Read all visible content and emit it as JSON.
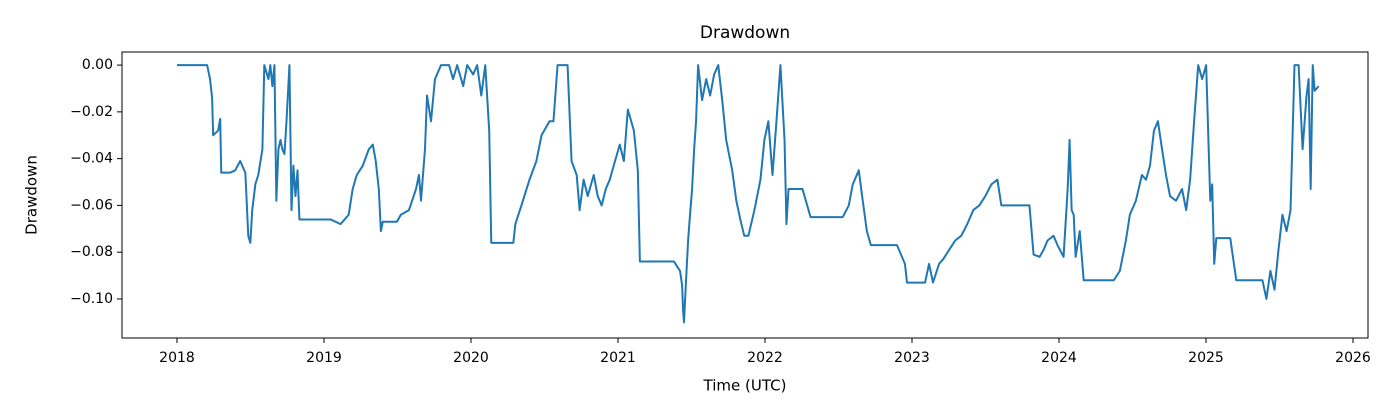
{
  "chart_data": {
    "type": "line",
    "title": "Drawdown",
    "xlabel": "Time (UTC)",
    "ylabel": "Drawdown",
    "color": "#1f77b4",
    "grid": false,
    "x": [
      2018.0,
      2018.205,
      2018.225,
      2018.239,
      2018.246,
      2018.28,
      2018.294,
      2018.301,
      2018.362,
      2018.396,
      2018.43,
      2018.465,
      2018.485,
      2018.499,
      2018.512,
      2018.533,
      2018.553,
      2018.581,
      2018.594,
      2018.622,
      2018.635,
      2018.649,
      2018.663,
      2018.676,
      2018.69,
      2018.704,
      2018.717,
      2018.731,
      2018.745,
      2018.765,
      2018.779,
      2018.792,
      2018.806,
      2018.82,
      2018.833,
      2019.045,
      2019.113,
      2019.168,
      2019.195,
      2019.223,
      2019.264,
      2019.305,
      2019.332,
      2019.352,
      2019.373,
      2019.387,
      2019.4,
      2019.496,
      2019.523,
      2019.578,
      2019.626,
      2019.646,
      2019.66,
      2019.687,
      2019.701,
      2019.728,
      2019.755,
      2019.796,
      2019.851,
      2019.878,
      2019.906,
      2019.947,
      2019.974,
      2020.015,
      2020.042,
      2020.07,
      2020.097,
      2020.124,
      2020.138,
      2020.288,
      2020.302,
      2020.343,
      2020.398,
      2020.445,
      2020.48,
      2020.534,
      2020.561,
      2020.589,
      2020.657,
      2020.684,
      2020.719,
      2020.739,
      2020.766,
      2020.794,
      2020.835,
      2020.862,
      2020.889,
      2020.917,
      2020.944,
      2020.971,
      2021.012,
      2021.04,
      2021.067,
      2021.108,
      2021.135,
      2021.149,
      2021.381,
      2021.422,
      2021.436,
      2021.443,
      2021.449,
      2021.463,
      2021.477,
      2021.49,
      2021.504,
      2021.518,
      2021.531,
      2021.545,
      2021.572,
      2021.6,
      2021.627,
      2021.654,
      2021.682,
      2021.709,
      2021.736,
      2021.777,
      2021.805,
      2021.832,
      2021.859,
      2021.887,
      2021.928,
      2021.969,
      2021.996,
      2022.023,
      2022.051,
      2022.078,
      2022.105,
      2022.133,
      2022.146,
      2022.16,
      2022.255,
      2022.31,
      2022.529,
      2022.57,
      2022.597,
      2022.638,
      2022.665,
      2022.693,
      2022.72,
      2022.898,
      2022.925,
      2022.952,
      2022.966,
      2023.089,
      2023.116,
      2023.143,
      2023.184,
      2023.212,
      2023.253,
      2023.294,
      2023.335,
      2023.376,
      2023.417,
      2023.458,
      2023.499,
      2023.54,
      2023.581,
      2023.608,
      2023.799,
      2023.827,
      2023.868,
      2023.895,
      2023.922,
      2023.963,
      2023.99,
      2024.031,
      2024.059,
      2024.072,
      2024.086,
      2024.1,
      2024.113,
      2024.141,
      2024.168,
      2024.373,
      2024.414,
      2024.455,
      2024.482,
      2024.523,
      2024.564,
      2024.592,
      2024.619,
      2024.646,
      2024.673,
      2024.701,
      2024.728,
      2024.755,
      2024.796,
      2024.837,
      2024.865,
      2024.892,
      2024.919,
      2024.947,
      2024.974,
      2025.001,
      2025.029,
      2025.042,
      2025.056,
      2025.07,
      2025.165,
      2025.206,
      2025.384,
      2025.411,
      2025.438,
      2025.466,
      2025.493,
      2025.52,
      2025.548,
      2025.575,
      2025.602,
      2025.63,
      2025.657,
      2025.684,
      2025.698,
      2025.712,
      2025.726,
      2025.739,
      2025.767
    ],
    "values": [
      0,
      0,
      -0.006,
      -0.014,
      -0.03,
      -0.028,
      -0.023,
      -0.046,
      -0.046,
      -0.045,
      -0.041,
      -0.046,
      -0.073,
      -0.076,
      -0.062,
      -0.051,
      -0.047,
      -0.036,
      0,
      -0.006,
      0,
      -0.009,
      0,
      -0.058,
      -0.036,
      -0.032,
      -0.036,
      -0.038,
      -0.024,
      0,
      -0.062,
      -0.043,
      -0.056,
      -0.045,
      -0.066,
      -0.066,
      -0.068,
      -0.064,
      -0.053,
      -0.047,
      -0.043,
      -0.036,
      -0.034,
      -0.041,
      -0.053,
      -0.071,
      -0.067,
      -0.067,
      -0.064,
      -0.062,
      -0.053,
      -0.047,
      -0.058,
      -0.036,
      -0.013,
      -0.024,
      -0.006,
      0,
      0,
      -0.006,
      0,
      -0.009,
      0,
      -0.004,
      0,
      -0.013,
      0,
      -0.028,
      -0.076,
      -0.076,
      -0.068,
      -0.06,
      -0.049,
      -0.041,
      -0.03,
      -0.024,
      -0.024,
      0,
      0,
      -0.041,
      -0.047,
      -0.062,
      -0.049,
      -0.056,
      -0.047,
      -0.056,
      -0.06,
      -0.053,
      -0.049,
      -0.043,
      -0.034,
      -0.041,
      -0.019,
      -0.028,
      -0.045,
      -0.084,
      -0.084,
      -0.088,
      -0.094,
      -0.105,
      -0.11,
      -0.092,
      -0.075,
      -0.064,
      -0.053,
      -0.036,
      -0.024,
      0,
      -0.015,
      -0.006,
      -0.013,
      -0.004,
      0,
      -0.015,
      -0.032,
      -0.045,
      -0.058,
      -0.066,
      -0.073,
      -0.073,
      -0.062,
      -0.049,
      -0.032,
      -0.024,
      -0.047,
      -0.024,
      0,
      -0.032,
      -0.068,
      -0.053,
      -0.053,
      -0.065,
      -0.065,
      -0.06,
      -0.051,
      -0.045,
      -0.058,
      -0.071,
      -0.077,
      -0.077,
      -0.081,
      -0.085,
      -0.093,
      -0.093,
      -0.085,
      -0.093,
      -0.085,
      -0.083,
      -0.079,
      -0.075,
      -0.073,
      -0.068,
      -0.062,
      -0.06,
      -0.056,
      -0.051,
      -0.049,
      -0.06,
      -0.06,
      -0.081,
      -0.082,
      -0.079,
      -0.075,
      -0.073,
      -0.077,
      -0.082,
      -0.053,
      -0.032,
      -0.062,
      -0.064,
      -0.082,
      -0.071,
      -0.092,
      -0.092,
      -0.088,
      -0.075,
      -0.064,
      -0.058,
      -0.047,
      -0.049,
      -0.043,
      -0.028,
      -0.024,
      -0.036,
      -0.047,
      -0.056,
      -0.058,
      -0.053,
      -0.062,
      -0.049,
      -0.024,
      0,
      -0.006,
      0,
      -0.058,
      -0.051,
      -0.085,
      -0.074,
      -0.074,
      -0.092,
      -0.092,
      -0.1,
      -0.088,
      -0.096,
      -0.079,
      -0.064,
      -0.071,
      -0.062,
      0,
      0,
      -0.036,
      -0.013,
      -0.006,
      -0.053,
      0,
      -0.011,
      -0.009
    ],
    "xlim": [
      2017.626,
      2026.102
    ],
    "xticks": [
      2018,
      2019,
      2020,
      2021,
      2022,
      2023,
      2024,
      2025,
      2026
    ],
    "ylim": [
      -0.1167,
      0.0056
    ],
    "yticks": [
      {
        "value": -0.1,
        "label": "−0.10"
      },
      {
        "value": -0.08,
        "label": "−0.08"
      },
      {
        "value": -0.06,
        "label": "−0.06"
      },
      {
        "value": -0.04,
        "label": "−0.04"
      },
      {
        "value": -0.02,
        "label": "−0.02"
      },
      {
        "value": 0,
        "label": "0.00"
      }
    ]
  }
}
